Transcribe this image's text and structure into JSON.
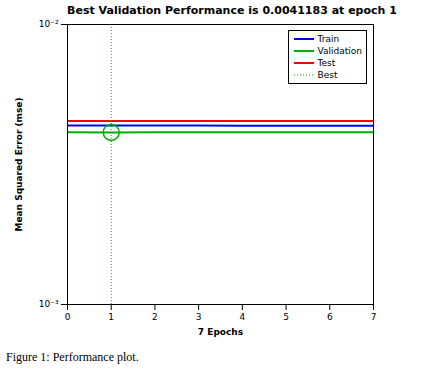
{
  "chart_data": {
    "type": "line",
    "title": "Best Validation Performance is 0.0041183 at epoch 1",
    "x_label": "7 Epochs",
    "y_label": "Mean Squared Error (mse)",
    "caption": "Figure 1: Performance plot.",
    "x": [
      0,
      1,
      2,
      3,
      4,
      5,
      6,
      7
    ],
    "series": [
      {
        "name": "Train",
        "color": "#0000ff",
        "line_style": "solid",
        "values": [
          0.00436,
          0.00436,
          0.00436,
          0.00436,
          0.00435,
          0.00435,
          0.00435,
          0.00435
        ]
      },
      {
        "name": "Validation",
        "color": "#00b000",
        "line_style": "solid",
        "values": [
          0.00412,
          0.0041183,
          0.004119,
          0.0041195,
          0.00412,
          0.00412,
          0.0041205,
          0.004121
        ]
      },
      {
        "name": "Test",
        "color": "#ff0000",
        "line_style": "solid",
        "values": [
          0.00452,
          0.00452,
          0.00452,
          0.00452,
          0.00452,
          0.00452,
          0.00452,
          0.00452
        ]
      }
    ],
    "best": {
      "name": "Best",
      "epoch": 1,
      "value": 0.0041183,
      "color": "#00b000",
      "line_style": "dotted",
      "marker": "circle"
    },
    "xlim": [
      0,
      7
    ],
    "xticks": [
      0,
      1,
      2,
      3,
      4,
      5,
      6,
      7
    ],
    "ylim": [
      0.001,
      0.01
    ],
    "yticks": [
      {
        "value": 0.001,
        "label": "10⁻³"
      },
      {
        "value": 0.01,
        "label": "10⁻²"
      }
    ],
    "log": "y",
    "grid": false,
    "legend": "northeast"
  }
}
